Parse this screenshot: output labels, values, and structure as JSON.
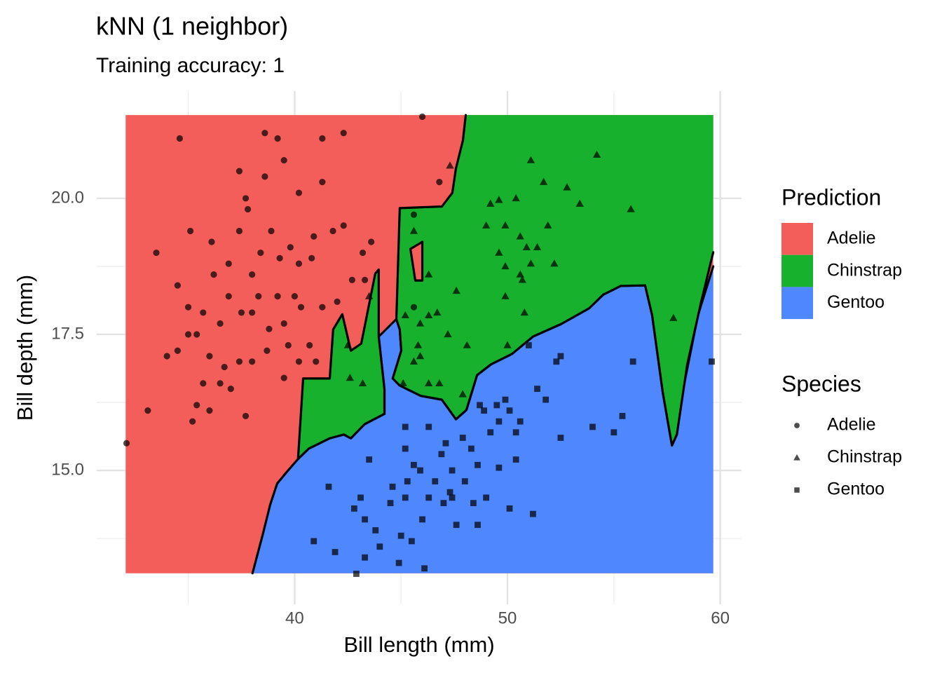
{
  "chart_data": {
    "type": "scatter",
    "title": "kNN (1 neighbor)",
    "subtitle": "Training accuracy: 1",
    "x_label": "Bill length (mm)",
    "y_label": "Bill depth (mm)",
    "xlim": [
      30.7,
      61.0
    ],
    "ylim": [
      12.54,
      21.97
    ],
    "xticks": [
      40,
      50,
      60
    ],
    "yticks": [
      {
        "value": 15,
        "label": "15.0"
      },
      17.5,
      {
        "value": 20,
        "label": "20.0"
      }
    ],
    "x_minor_ticks": [
      35,
      45,
      55
    ],
    "y_minor_ticks": [
      13.75,
      16.25,
      18.75
    ],
    "grid": true,
    "regions": {
      "title": "Prediction",
      "items": [
        {
          "name": "Adelie",
          "color": "#f35e5a",
          "polygons": [
            {
              "x": [
                32.06,
                59.67,
                59.67,
                32.06
              ],
              "y": [
                21.53,
                21.53,
                13.11,
                13.11
              ]
            },
            {
              "x": [
                45.44,
                46.0,
                46.0,
                45.67
              ],
              "y": [
                19.07,
                19.2,
                18.49,
                18.49
              ]
            }
          ]
        },
        {
          "name": "Chinstrap",
          "color": "#17b12e",
          "polygons": [
            {
              "x": [
                48.04,
                59.67,
                59.67,
                59.11,
                58.45,
                57.96,
                57.73,
                57.3,
                56.8,
                56.47,
                55.32,
                54.5,
                53.84,
                52.52,
                51.2,
                50.21,
                49.23,
                48.57,
                48.07,
                47.58,
                46.92,
                45.93,
                44.94,
                44.61,
                45.01,
                44.94,
                44.78,
                44.94,
                46.92,
                47.41,
                47.58,
                47.91
              ],
              "y": [
                21.53,
                21.53,
                19.01,
                18.11,
                16.95,
                15.66,
                15.46,
                16.43,
                17.85,
                18.4,
                18.39,
                18.23,
                17.98,
                17.69,
                17.46,
                17.14,
                16.95,
                16.75,
                16.11,
                15.94,
                16.3,
                16.37,
                16.56,
                16.69,
                17.2,
                17.59,
                17.78,
                19.82,
                19.85,
                20.1,
                20.55,
                21.07
              ]
            },
            {
              "x": [
                40.16,
                40.4,
                41.65,
                41.81,
                42.24,
                42.64,
                43.13,
                43.79,
                43.95,
                43.95,
                44.22,
                44.22,
                43.29,
                42.64,
                42.31,
                41.65,
                40.66
              ],
              "y": [
                15.21,
                16.69,
                16.69,
                17.59,
                17.87,
                17.2,
                17.33,
                18.62,
                18.69,
                17.46,
                16.49,
                16.04,
                15.85,
                15.59,
                15.66,
                15.59,
                15.4
              ]
            }
          ]
        },
        {
          "name": "Gentoo",
          "color": "#4f87ff",
          "polygons": [
            {
              "x": [
                38.02,
                38.52,
                38.85,
                39.18,
                39.67,
                40.16,
                40.66,
                41.65,
                42.31,
                42.64,
                43.29,
                44.22,
                44.22,
                43.95,
                44.78,
                44.94,
                45.01,
                44.61,
                44.94,
                45.93,
                46.92,
                47.58,
                48.07,
                48.57,
                49.23,
                50.21,
                51.2,
                52.52,
                53.84,
                54.5,
                55.32,
                56.47,
                56.8,
                57.3,
                57.73,
                57.96,
                58.29,
                58.95,
                59.67,
                59.67
              ],
              "y": [
                13.11,
                13.85,
                14.37,
                14.76,
                14.99,
                15.21,
                15.4,
                15.59,
                15.66,
                15.59,
                15.85,
                16.04,
                16.49,
                17.46,
                17.78,
                17.59,
                17.2,
                16.69,
                16.56,
                16.37,
                16.3,
                15.94,
                16.11,
                16.75,
                16.95,
                17.14,
                17.46,
                17.69,
                17.98,
                18.23,
                18.39,
                18.4,
                17.85,
                16.43,
                15.46,
                15.66,
                16.56,
                17.85,
                18.75,
                13.11
              ]
            }
          ]
        }
      ]
    },
    "legend_title": "Species",
    "point_opacity": 0.7,
    "series": [
      {
        "name": "Adelie",
        "shape": "circle",
        "color": "#000000",
        "x": [
          32.1,
          34.6,
          38.6,
          46.0,
          42.3,
          39.2,
          41.3,
          33.5,
          33.1,
          35.2,
          37.7,
          35.1,
          37.4,
          39.5,
          40.2,
          41.3,
          45.6,
          46.8,
          37.7,
          34.5,
          35.0,
          36.1,
          36.2,
          36.9,
          37.4,
          38.0,
          38.4,
          38.9,
          39.3,
          39.8,
          40.2,
          40.8,
          40.9,
          41.8,
          42.3,
          43.2,
          42.7,
          42.0,
          41.3,
          40.3,
          39.5,
          38.8,
          38.7,
          38.0,
          37.4,
          36.7,
          36.0,
          35.7,
          36.5,
          37.0,
          36.0,
          35.4,
          34.0,
          34.5,
          35.4,
          35.7,
          36.5,
          37.5,
          38.0,
          38.3,
          39.2,
          40.0,
          40.7,
          40.2,
          39.5,
          39.7,
          41.0,
          45.6,
          43.3,
          43.6,
          38.6,
          37.8,
          36.9,
          35.0
        ],
        "y": [
          15.5,
          21.1,
          21.2,
          21.5,
          21.2,
          21.1,
          21.1,
          19.0,
          16.1,
          15.9,
          16.0,
          19.4,
          20.5,
          20.7,
          20.1,
          20.3,
          19.7,
          20.3,
          20.0,
          18.4,
          18.0,
          19.2,
          18.6,
          18.8,
          19.4,
          18.6,
          19.0,
          19.4,
          18.9,
          19.1,
          18.8,
          18.9,
          19.3,
          19.4,
          19.5,
          19.0,
          18.5,
          18.1,
          18.0,
          18.0,
          17.7,
          17.6,
          17.2,
          17.0,
          17.0,
          16.9,
          17.1,
          16.6,
          16.6,
          16.5,
          16.1,
          16.2,
          17.1,
          17.2,
          17.5,
          17.9,
          17.7,
          17.9,
          17.9,
          18.2,
          18.2,
          18.2,
          17.3,
          17.0,
          16.7,
          17.3,
          17.0,
          18.0,
          18.5,
          19.2,
          20.4,
          19.8,
          18.2,
          17.5
        ]
      },
      {
        "name": "Chinstrap",
        "shape": "triangle",
        "color": "#000000",
        "x": [
          54.2,
          51.1,
          47.3,
          51.7,
          50.4,
          52.8,
          53.4,
          55.8,
          49.2,
          49.6,
          49.0,
          49.9,
          50.6,
          51.9,
          45.6,
          49.6,
          50.9,
          51.4,
          52.2,
          51.1,
          50.6,
          50.7,
          49.9,
          47.6,
          46.3,
          46.7,
          46.3,
          45.2,
          45.9,
          49.9,
          50.8,
          57.8,
          50.0,
          48.1,
          45.8,
          45.9,
          45.6,
          45.1,
          46.3,
          46.8,
          47.9,
          47.2,
          42.5,
          42.6,
          43.2,
          43.5
        ],
        "y": [
          20.8,
          20.7,
          20.6,
          20.3,
          20.0,
          20.2,
          19.9,
          19.8,
          19.9,
          19.97,
          19.5,
          19.5,
          19.3,
          19.5,
          19.4,
          19.0,
          19.1,
          19.1,
          18.8,
          18.8,
          18.6,
          18.5,
          18.75,
          18.3,
          18.6,
          17.9,
          17.85,
          17.85,
          17.7,
          18.2,
          17.9,
          17.8,
          17.3,
          17.3,
          17.3,
          17.1,
          17.0,
          16.6,
          16.6,
          16.6,
          16.4,
          17.5,
          17.3,
          16.7,
          16.6,
          18.2
        ]
      },
      {
        "name": "Gentoo",
        "shape": "square",
        "color": "#000000",
        "x": [
          59.6,
          55.9,
          52.5,
          52.3,
          51.0,
          51.4,
          51.8,
          55.4,
          54.0,
          55.0,
          52.5,
          48.7,
          48.9,
          49.5,
          49.9,
          50.1,
          50.6,
          49.6,
          49.2,
          50.4,
          45.2,
          46.3,
          47.1,
          47.9,
          48.3,
          46.9,
          45.2,
          43.5,
          45.9,
          47.4,
          48.6,
          49.6,
          50.4,
          46.6,
          45.3,
          44.6,
          41.6,
          45.2,
          46.3,
          47.4,
          48.4,
          49.0,
          50.1,
          51.2,
          43.1,
          43.3,
          43.8,
          42.8,
          45.0,
          45.5,
          46.0,
          47.6,
          48.6,
          40.9,
          41.9,
          44.0,
          43.3,
          44.9,
          46.1,
          42.9,
          47.0,
          47.3,
          48.0,
          45.6,
          44.5
        ],
        "y": [
          17.0,
          17.0,
          17.1,
          17.0,
          17.3,
          16.5,
          16.3,
          16.0,
          15.8,
          15.7,
          15.6,
          16.2,
          16.1,
          16.2,
          16.3,
          16.1,
          15.9,
          15.9,
          15.7,
          15.7,
          15.8,
          15.8,
          15.5,
          15.6,
          15.4,
          15.3,
          15.4,
          15.2,
          15.0,
          15.0,
          15.1,
          15.05,
          15.2,
          14.8,
          14.8,
          14.7,
          14.7,
          14.5,
          14.5,
          14.5,
          14.4,
          14.5,
          14.3,
          14.2,
          14.5,
          14.1,
          13.9,
          14.3,
          13.8,
          13.7,
          14.1,
          14.0,
          14.0,
          13.7,
          13.5,
          13.6,
          13.4,
          13.3,
          13.2,
          13.1,
          14.4,
          14.6,
          14.8,
          15.1,
          14.4
        ]
      }
    ]
  }
}
